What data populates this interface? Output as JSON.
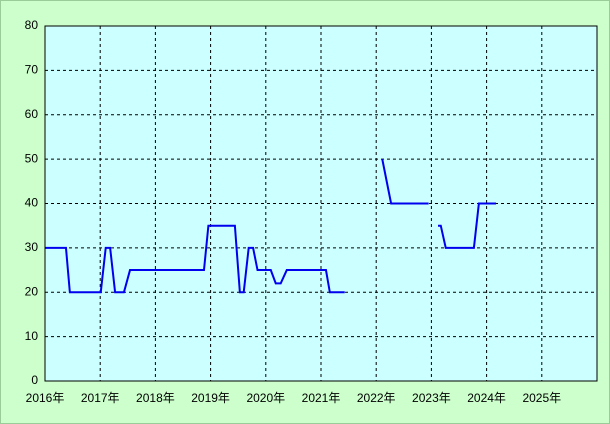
{
  "chart_data": {
    "type": "line",
    "x": [
      2016.0,
      2016.38,
      2016.45,
      2017.01,
      2017.1,
      2017.18,
      2017.27,
      2017.43,
      2017.54,
      2018.88,
      2018.96,
      2019.44,
      2019.53,
      2019.6,
      2019.69,
      2019.77,
      2019.85,
      2020.09,
      2020.18,
      2020.27,
      2020.38,
      2021.09,
      2021.16,
      2021.43,
      null,
      2022.11,
      2022.27,
      2022.95,
      null,
      2023.12,
      2023.17,
      2023.26,
      2023.77,
      2023.86,
      2024.17
    ],
    "values": [
      30,
      30,
      20,
      20,
      30,
      30,
      20,
      20,
      25,
      25,
      35,
      35,
      20,
      20,
      30,
      30,
      25,
      25,
      22,
      22,
      25,
      25,
      20,
      20,
      null,
      50,
      40,
      40,
      null,
      35,
      35,
      30,
      30,
      40,
      40
    ],
    "color": "#0000ee",
    "xlim": [
      2016,
      2026
    ],
    "xticks": [
      {
        "value": 2016,
        "label": "2016年"
      },
      {
        "value": 2017,
        "label": "2017年"
      },
      {
        "value": 2018,
        "label": "2018年"
      },
      {
        "value": 2019,
        "label": "2019年"
      },
      {
        "value": 2020,
        "label": "2020年"
      },
      {
        "value": 2021,
        "label": "2021年"
      },
      {
        "value": 2022,
        "label": "2022年"
      },
      {
        "value": 2023,
        "label": "2023年"
      },
      {
        "value": 2024,
        "label": "2024年"
      },
      {
        "value": 2025,
        "label": "2025年"
      }
    ],
    "ylim": [
      0,
      80
    ],
    "yticks": [
      0,
      10,
      20,
      30,
      40,
      50,
      60,
      70,
      80
    ],
    "grid": true
  }
}
